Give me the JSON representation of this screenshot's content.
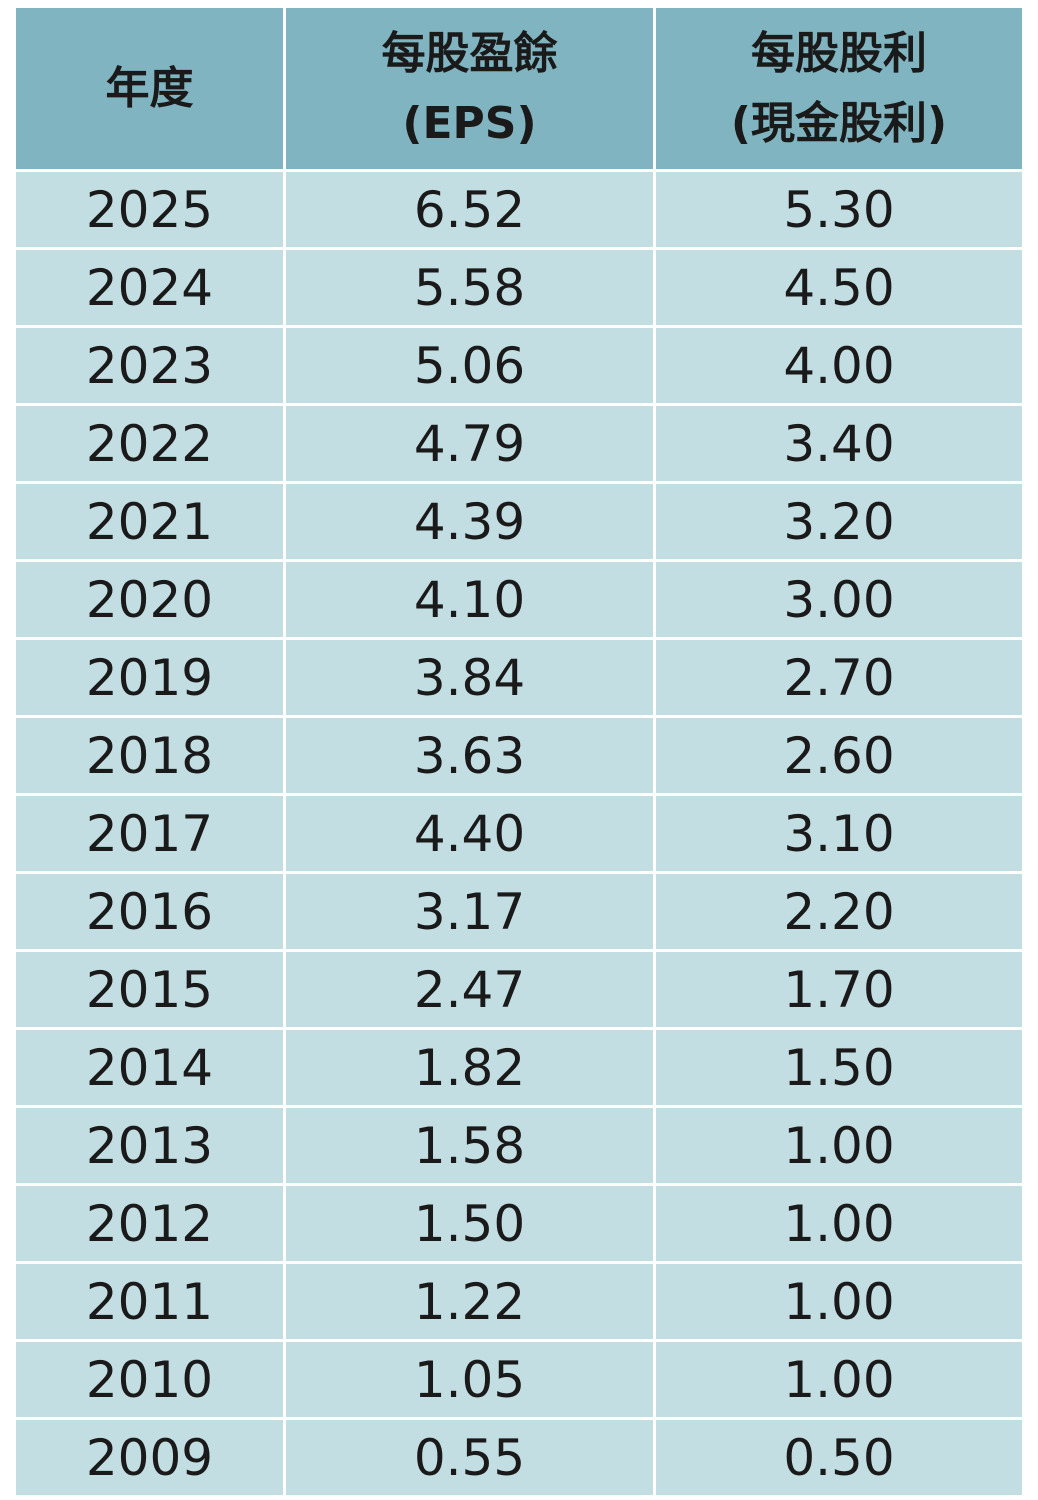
{
  "table": {
    "header": [
      [
        "年度"
      ],
      [
        "每股盈餘",
        "(EPS)"
      ],
      [
        "每股股利",
        "(現金股利)"
      ]
    ],
    "rows": [
      [
        "2025",
        "6.52",
        "5.30"
      ],
      [
        "2024",
        "5.58",
        "4.50"
      ],
      [
        "2023",
        "5.06",
        "4.00"
      ],
      [
        "2022",
        "4.79",
        "3.40"
      ],
      [
        "2021",
        "4.39",
        "3.20"
      ],
      [
        "2020",
        "4.10",
        "3.00"
      ],
      [
        "2019",
        "3.84",
        "2.70"
      ],
      [
        "2018",
        "3.63",
        "2.60"
      ],
      [
        "2017",
        "4.40",
        "3.10"
      ],
      [
        "2016",
        "3.17",
        "2.20"
      ],
      [
        "2015",
        "2.47",
        "1.70"
      ],
      [
        "2014",
        "1.82",
        "1.50"
      ],
      [
        "2013",
        "1.58",
        "1.00"
      ],
      [
        "2012",
        "1.50",
        "1.00"
      ],
      [
        "2011",
        "1.22",
        "1.00"
      ],
      [
        "2010",
        "1.05",
        "1.00"
      ],
      [
        "2009",
        "0.55",
        "0.50"
      ]
    ]
  }
}
